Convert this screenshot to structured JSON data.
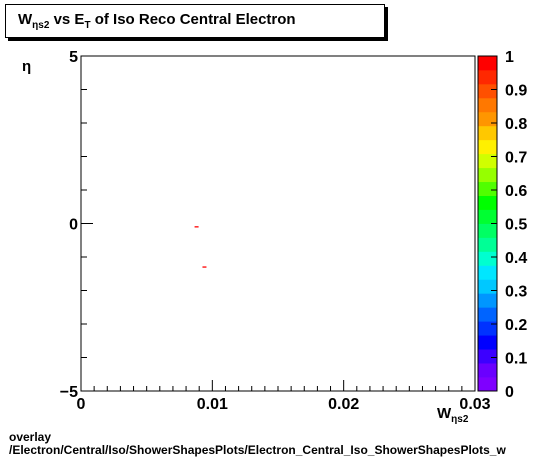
{
  "title": {
    "w": "W",
    "w_sub": "ηs2",
    "vs": " vs E",
    "e_sub": "T",
    "rest": " of Iso Reco Central  Electron"
  },
  "x_axis_title": {
    "main": "W",
    "sub": "ηs2"
  },
  "y_axis_title": "η",
  "footer": {
    "line1": "overlay",
    "line2": "/Electron/Central/Iso/ShowerShapesPlots/Electron_Central_Iso_ShowerShapesPlots_w"
  },
  "colors": {
    "frame": "#000000",
    "marker": "#ff0000",
    "palette": [
      "#7f00ff",
      "#6a00ff",
      "#3c00ff",
      "#0000ff",
      "#0032ff",
      "#0064ff",
      "#0096ff",
      "#00c8ff",
      "#00e6ff",
      "#00ffd0",
      "#00ff96",
      "#00ff64",
      "#00ff32",
      "#00ff00",
      "#50ff00",
      "#96ff00",
      "#d0ff00",
      "#fff000",
      "#ffc800",
      "#ff9600",
      "#ff7800",
      "#ff5000",
      "#ff2800",
      "#ff0000"
    ]
  },
  "chart_data": {
    "type": "scatter",
    "title": "Wηs2 vs ET of Iso Reco Central  Electron",
    "xlabel": "Wηs2",
    "ylabel": "η",
    "xlim": [
      0,
      0.03
    ],
    "ylim": [
      -5,
      5
    ],
    "x_ticks": [
      "0",
      "0.01",
      "0.02",
      "0.03"
    ],
    "y_ticks": [
      "5",
      "0",
      "−5"
    ],
    "colorbar": {
      "range": [
        0,
        1
      ],
      "ticks": [
        "0",
        "0.1",
        "0.2",
        "0.3",
        "0.4",
        "0.5",
        "0.6",
        "0.7",
        "0.8",
        "0.9",
        "1"
      ]
    },
    "points": [
      {
        "x": 0.0088,
        "y": -0.1
      },
      {
        "x": 0.0094,
        "y": -1.3
      }
    ]
  }
}
